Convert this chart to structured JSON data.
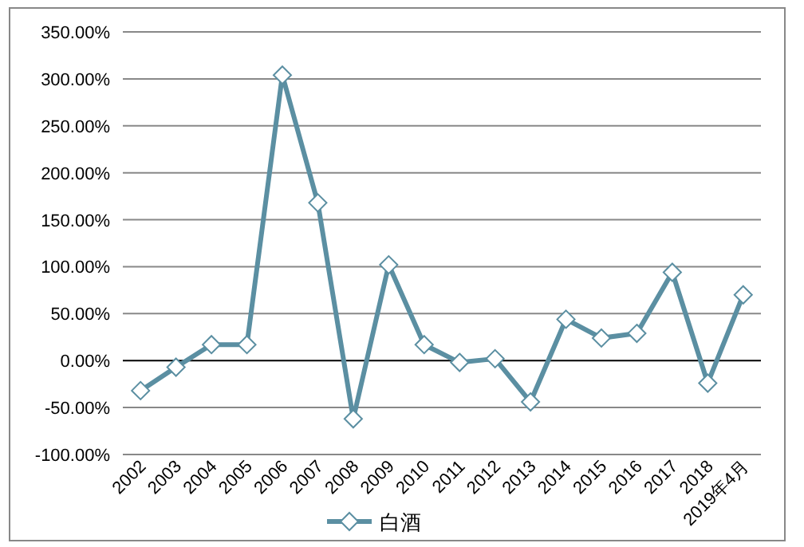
{
  "chart_data": {
    "type": "line",
    "categories": [
      "2002",
      "2003",
      "2004",
      "2005",
      "2006",
      "2007",
      "2008",
      "2009",
      "2010",
      "2011",
      "2012",
      "2013",
      "2014",
      "2015",
      "2016",
      "2017",
      "2018",
      "2019年4月"
    ],
    "series": [
      {
        "name": "白酒",
        "color": "#5b8fa2",
        "values": [
          -32,
          -7,
          17,
          17,
          304,
          168,
          -62,
          102,
          17,
          -2,
          2,
          -44,
          44,
          24,
          29,
          94,
          -24,
          70
        ]
      }
    ],
    "ylim": [
      -100,
      350
    ],
    "yticks": [
      {
        "value": -100,
        "label": "-100.00%"
      },
      {
        "value": -50,
        "label": "-50.00%"
      },
      {
        "value": 0,
        "label": "0.00%"
      },
      {
        "value": 50,
        "label": "50.00%"
      },
      {
        "value": 100,
        "label": "100.00%"
      },
      {
        "value": 150,
        "label": "150.00%"
      },
      {
        "value": 200,
        "label": "200.00%"
      },
      {
        "value": 250,
        "label": "250.00%"
      },
      {
        "value": 300,
        "label": "300.00%"
      },
      {
        "value": 350,
        "label": "350.00%"
      }
    ],
    "grid": "y",
    "legend": "bottom",
    "marker": "diamond",
    "line_style": "solid"
  }
}
